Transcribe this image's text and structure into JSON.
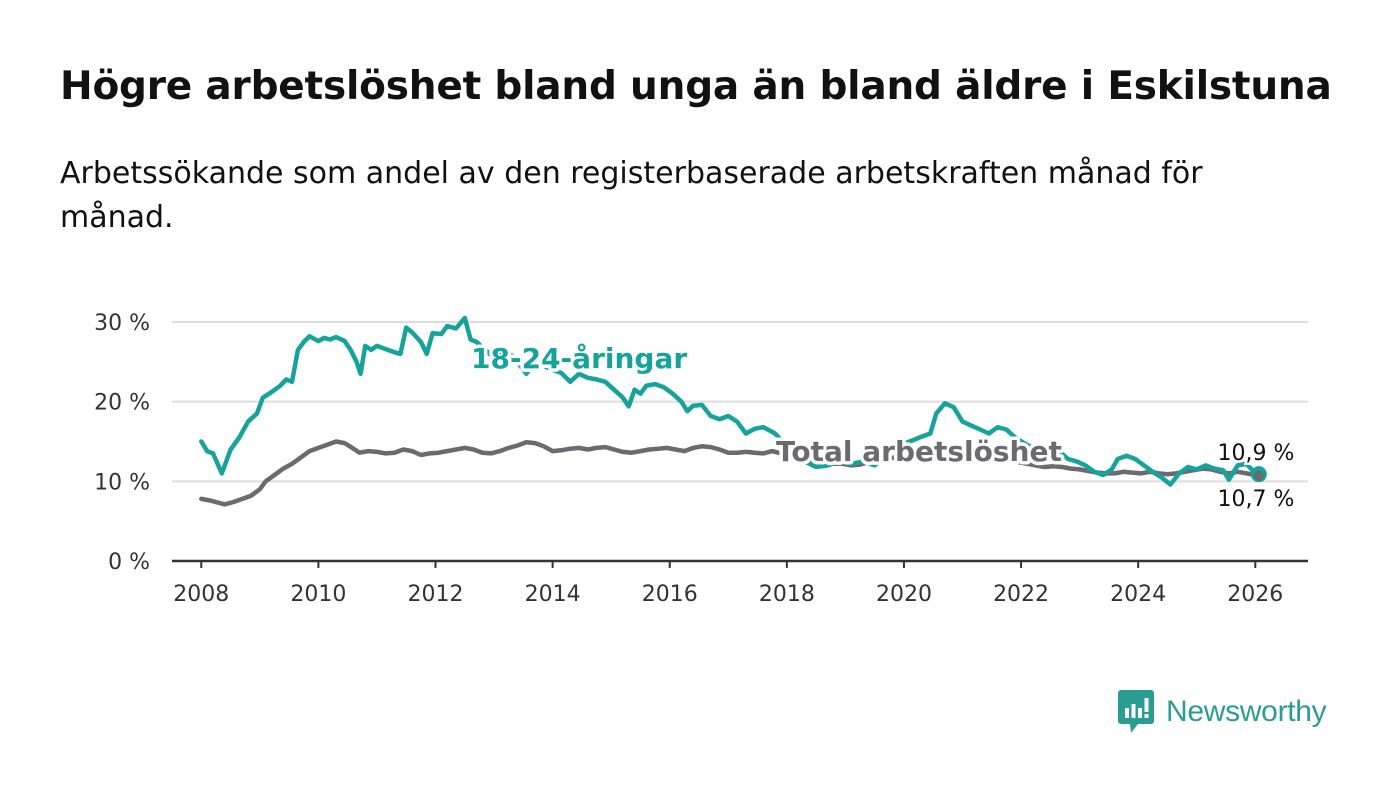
{
  "header": {
    "title": "Högre arbetslöshet bland unga än bland äldre i Eskilstuna",
    "subtitle": "Arbetssökande som andel av den registerbaserade arbetskraften månad för månad."
  },
  "brand": {
    "name": "Newsworthy",
    "icon": "newsworthy-logo-icon",
    "color": "#2a9d92"
  },
  "colors": {
    "youth": "#16a39b",
    "total": "#6b6a71",
    "grid": "#dddddd",
    "axis": "#333333"
  },
  "chart_data": {
    "type": "line",
    "title": "",
    "xlabel": "",
    "ylabel": "",
    "xlim": [
      2007.5,
      2026.9
    ],
    "ylim": [
      0,
      30
    ],
    "y_ticks": [
      0,
      10,
      20,
      30
    ],
    "y_tick_labels": [
      "0 %",
      "10 %",
      "20 %",
      "30 %"
    ],
    "x_ticks": [
      2008,
      2010,
      2012,
      2014,
      2016,
      2018,
      2020,
      2022,
      2024,
      2026
    ],
    "x_tick_labels": [
      "2008",
      "2010",
      "2012",
      "2014",
      "2016",
      "2018",
      "2020",
      "2022",
      "2024",
      "2026"
    ],
    "series": [
      {
        "name": "18-24-åringar",
        "color": "#16a39b",
        "end_label": "10,9 %",
        "points": [
          [
            2008.0,
            15.0
          ],
          [
            2008.1,
            13.8
          ],
          [
            2008.2,
            13.5
          ],
          [
            2008.35,
            11.0
          ],
          [
            2008.5,
            14.0
          ],
          [
            2008.65,
            15.5
          ],
          [
            2008.8,
            17.5
          ],
          [
            2008.95,
            18.5
          ],
          [
            2009.05,
            20.5
          ],
          [
            2009.2,
            21.2
          ],
          [
            2009.35,
            22.0
          ],
          [
            2009.45,
            22.8
          ],
          [
            2009.55,
            22.5
          ],
          [
            2009.65,
            26.5
          ],
          [
            2009.75,
            27.5
          ],
          [
            2009.85,
            28.2
          ],
          [
            2010.0,
            27.6
          ],
          [
            2010.1,
            28.0
          ],
          [
            2010.2,
            27.8
          ],
          [
            2010.3,
            28.1
          ],
          [
            2010.45,
            27.6
          ],
          [
            2010.55,
            26.5
          ],
          [
            2010.65,
            25.0
          ],
          [
            2010.72,
            23.5
          ],
          [
            2010.8,
            27.0
          ],
          [
            2010.9,
            26.5
          ],
          [
            2011.0,
            27.0
          ],
          [
            2011.15,
            26.6
          ],
          [
            2011.3,
            26.2
          ],
          [
            2011.4,
            26.0
          ],
          [
            2011.5,
            29.3
          ],
          [
            2011.6,
            28.7
          ],
          [
            2011.75,
            27.5
          ],
          [
            2011.85,
            26.0
          ],
          [
            2011.95,
            28.6
          ],
          [
            2012.1,
            28.5
          ],
          [
            2012.2,
            29.5
          ],
          [
            2012.35,
            29.2
          ],
          [
            2012.5,
            30.5
          ],
          [
            2012.6,
            27.8
          ],
          [
            2012.7,
            27.5
          ],
          [
            2012.85,
            26.5
          ],
          [
            2013.0,
            25.5
          ],
          [
            2013.15,
            26.0
          ],
          [
            2013.3,
            25.8
          ],
          [
            2013.45,
            24.5
          ],
          [
            2013.55,
            23.5
          ],
          [
            2013.7,
            25.0
          ],
          [
            2013.85,
            24.5
          ],
          [
            2014.0,
            24.0
          ],
          [
            2014.15,
            23.6
          ],
          [
            2014.3,
            22.5
          ],
          [
            2014.45,
            23.5
          ],
          [
            2014.6,
            23.0
          ],
          [
            2014.75,
            22.8
          ],
          [
            2014.9,
            22.5
          ],
          [
            2015.05,
            21.5
          ],
          [
            2015.2,
            20.5
          ],
          [
            2015.3,
            19.4
          ],
          [
            2015.4,
            21.5
          ],
          [
            2015.5,
            21.0
          ],
          [
            2015.6,
            22.0
          ],
          [
            2015.75,
            22.2
          ],
          [
            2015.9,
            21.8
          ],
          [
            2016.05,
            21.0
          ],
          [
            2016.2,
            20.0
          ],
          [
            2016.3,
            18.8
          ],
          [
            2016.4,
            19.5
          ],
          [
            2016.55,
            19.6
          ],
          [
            2016.7,
            18.2
          ],
          [
            2016.85,
            17.8
          ],
          [
            2017.0,
            18.2
          ],
          [
            2017.15,
            17.5
          ],
          [
            2017.3,
            16.0
          ],
          [
            2017.45,
            16.6
          ],
          [
            2017.6,
            16.8
          ],
          [
            2017.8,
            16.0
          ],
          [
            2017.95,
            14.8
          ],
          [
            2018.1,
            13.8
          ],
          [
            2018.3,
            12.5
          ],
          [
            2018.5,
            11.8
          ],
          [
            2018.7,
            12.0
          ],
          [
            2018.9,
            12.5
          ],
          [
            2019.1,
            12.2
          ],
          [
            2019.3,
            12.5
          ],
          [
            2019.5,
            12.0
          ],
          [
            2019.7,
            13.5
          ],
          [
            2019.9,
            14.5
          ],
          [
            2020.1,
            15.0
          ],
          [
            2020.3,
            15.6
          ],
          [
            2020.45,
            16.0
          ],
          [
            2020.55,
            18.5
          ],
          [
            2020.7,
            19.8
          ],
          [
            2020.85,
            19.3
          ],
          [
            2021.0,
            17.5
          ],
          [
            2021.15,
            17.0
          ],
          [
            2021.3,
            16.5
          ],
          [
            2021.45,
            16.0
          ],
          [
            2021.6,
            16.8
          ],
          [
            2021.75,
            16.5
          ],
          [
            2021.9,
            15.5
          ],
          [
            2022.05,
            14.8
          ],
          [
            2022.2,
            14.2
          ],
          [
            2022.35,
            14.0
          ],
          [
            2022.5,
            14.0
          ],
          [
            2022.65,
            13.8
          ],
          [
            2022.8,
            12.8
          ],
          [
            2022.95,
            12.5
          ],
          [
            2023.1,
            12.0
          ],
          [
            2023.25,
            11.2
          ],
          [
            2023.4,
            10.8
          ],
          [
            2023.55,
            11.5
          ],
          [
            2023.65,
            12.8
          ],
          [
            2023.8,
            13.2
          ],
          [
            2023.95,
            12.8
          ],
          [
            2024.1,
            12.0
          ],
          [
            2024.25,
            11.2
          ],
          [
            2024.4,
            10.5
          ],
          [
            2024.55,
            9.6
          ],
          [
            2024.7,
            11.0
          ],
          [
            2024.85,
            11.8
          ],
          [
            2025.0,
            11.5
          ],
          [
            2025.15,
            12.0
          ],
          [
            2025.3,
            11.6
          ],
          [
            2025.45,
            11.4
          ],
          [
            2025.55,
            10.2
          ],
          [
            2025.7,
            12.0
          ],
          [
            2025.85,
            12.2
          ],
          [
            2026.0,
            11.0
          ],
          [
            2026.06,
            10.9
          ]
        ]
      },
      {
        "name": "Total arbetslöshet",
        "color": "#6b6a71",
        "end_label": "10,7 %",
        "points": [
          [
            2008.0,
            7.8
          ],
          [
            2008.15,
            7.6
          ],
          [
            2008.3,
            7.3
          ],
          [
            2008.4,
            7.1
          ],
          [
            2008.55,
            7.4
          ],
          [
            2008.7,
            7.8
          ],
          [
            2008.85,
            8.2
          ],
          [
            2009.0,
            9.0
          ],
          [
            2009.1,
            10.0
          ],
          [
            2009.25,
            10.8
          ],
          [
            2009.4,
            11.6
          ],
          [
            2009.55,
            12.2
          ],
          [
            2009.7,
            13.0
          ],
          [
            2009.85,
            13.8
          ],
          [
            2010.0,
            14.2
          ],
          [
            2010.15,
            14.6
          ],
          [
            2010.3,
            15.0
          ],
          [
            2010.45,
            14.8
          ],
          [
            2010.6,
            14.1
          ],
          [
            2010.7,
            13.6
          ],
          [
            2010.85,
            13.8
          ],
          [
            2011.0,
            13.7
          ],
          [
            2011.15,
            13.5
          ],
          [
            2011.3,
            13.6
          ],
          [
            2011.45,
            14.0
          ],
          [
            2011.6,
            13.8
          ],
          [
            2011.75,
            13.3
          ],
          [
            2011.9,
            13.5
          ],
          [
            2012.05,
            13.6
          ],
          [
            2012.2,
            13.8
          ],
          [
            2012.35,
            14.0
          ],
          [
            2012.5,
            14.2
          ],
          [
            2012.65,
            14.0
          ],
          [
            2012.8,
            13.6
          ],
          [
            2012.95,
            13.5
          ],
          [
            2013.1,
            13.8
          ],
          [
            2013.25,
            14.2
          ],
          [
            2013.4,
            14.5
          ],
          [
            2013.55,
            14.9
          ],
          [
            2013.7,
            14.8
          ],
          [
            2013.85,
            14.4
          ],
          [
            2014.0,
            13.8
          ],
          [
            2014.15,
            13.9
          ],
          [
            2014.3,
            14.1
          ],
          [
            2014.45,
            14.2
          ],
          [
            2014.6,
            14.0
          ],
          [
            2014.75,
            14.2
          ],
          [
            2014.9,
            14.3
          ],
          [
            2015.05,
            14.0
          ],
          [
            2015.2,
            13.7
          ],
          [
            2015.35,
            13.6
          ],
          [
            2015.5,
            13.8
          ],
          [
            2015.65,
            14.0
          ],
          [
            2015.8,
            14.1
          ],
          [
            2015.95,
            14.2
          ],
          [
            2016.1,
            14.0
          ],
          [
            2016.25,
            13.8
          ],
          [
            2016.4,
            14.2
          ],
          [
            2016.55,
            14.4
          ],
          [
            2016.7,
            14.3
          ],
          [
            2016.85,
            14.0
          ],
          [
            2017.0,
            13.6
          ],
          [
            2017.15,
            13.6
          ],
          [
            2017.3,
            13.7
          ],
          [
            2017.45,
            13.6
          ],
          [
            2017.6,
            13.5
          ],
          [
            2017.75,
            13.8
          ],
          [
            2017.9,
            13.5
          ],
          [
            2018.05,
            13.2
          ],
          [
            2018.2,
            12.8
          ],
          [
            2018.35,
            12.6
          ],
          [
            2018.5,
            12.4
          ],
          [
            2018.65,
            12.3
          ],
          [
            2018.8,
            12.2
          ],
          [
            2018.95,
            12.2
          ],
          [
            2019.1,
            12.0
          ],
          [
            2019.25,
            12.1
          ],
          [
            2019.4,
            12.4
          ],
          [
            2019.55,
            12.6
          ],
          [
            2019.7,
            12.8
          ],
          [
            2019.85,
            13.0
          ],
          [
            2020.0,
            13.2
          ],
          [
            2020.15,
            13.5
          ],
          [
            2020.3,
            14.0
          ],
          [
            2020.45,
            14.3
          ],
          [
            2020.6,
            14.2
          ],
          [
            2020.75,
            13.8
          ],
          [
            2020.9,
            13.5
          ],
          [
            2021.05,
            13.4
          ],
          [
            2021.2,
            13.2
          ],
          [
            2021.35,
            13.0
          ],
          [
            2021.5,
            12.8
          ],
          [
            2021.65,
            12.8
          ],
          [
            2021.8,
            12.6
          ],
          [
            2021.95,
            12.4
          ],
          [
            2022.1,
            12.2
          ],
          [
            2022.25,
            12.0
          ],
          [
            2022.4,
            11.8
          ],
          [
            2022.55,
            11.9
          ],
          [
            2022.7,
            11.8
          ],
          [
            2022.85,
            11.6
          ],
          [
            2023.0,
            11.5
          ],
          [
            2023.15,
            11.3
          ],
          [
            2023.3,
            11.1
          ],
          [
            2023.45,
            11.0
          ],
          [
            2023.6,
            11.0
          ],
          [
            2023.75,
            11.2
          ],
          [
            2023.9,
            11.1
          ],
          [
            2024.05,
            11.0
          ],
          [
            2024.2,
            11.2
          ],
          [
            2024.35,
            11.0
          ],
          [
            2024.5,
            10.9
          ],
          [
            2024.65,
            11.0
          ],
          [
            2024.8,
            11.2
          ],
          [
            2024.95,
            11.4
          ],
          [
            2025.1,
            11.6
          ],
          [
            2025.25,
            11.5
          ],
          [
            2025.4,
            11.2
          ],
          [
            2025.55,
            11.0
          ],
          [
            2025.7,
            11.2
          ],
          [
            2025.85,
            11.0
          ],
          [
            2026.0,
            10.8
          ],
          [
            2026.06,
            10.7
          ]
        ]
      }
    ]
  }
}
